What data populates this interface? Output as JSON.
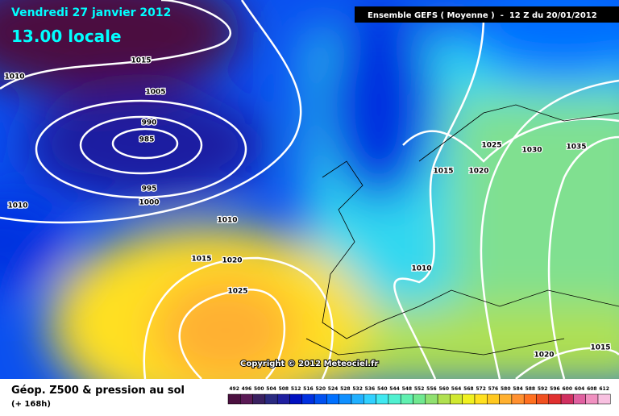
{
  "header": {
    "date": "Vendredi 27 janvier 2012",
    "time": "13.00 locale",
    "run": "Ensemble GEFS ( Moyenne )  -  12 Z du 20/01/2012"
  },
  "isobars": [
    "1015",
    "1010",
    "1005",
    "990",
    "985",
    "995",
    "1000",
    "1010",
    "1010",
    "1015",
    "1020",
    "1025",
    "1025",
    "1030",
    "1035",
    "1015",
    "1020",
    "1010",
    "1020",
    "1015"
  ],
  "copyright": "Copyright © 2012 Meteociel.fr",
  "footer": {
    "title": "Géop. Z500 & pression au sol",
    "lead": "(+ 168h)"
  },
  "legend": {
    "labels": [
      492,
      496,
      500,
      504,
      508,
      512,
      516,
      520,
      524,
      528,
      532,
      536,
      540,
      544,
      548,
      552,
      556,
      560,
      564,
      568,
      572,
      576,
      580,
      584,
      588,
      592,
      596,
      600,
      604,
      608,
      612
    ],
    "colors": [
      "#4b1040",
      "#5a1a55",
      "#3a2060",
      "#2a2a80",
      "#1f1fa0",
      "#0010c0",
      "#0030e0",
      "#0050f0",
      "#0070ff",
      "#1090ff",
      "#20b0ff",
      "#30d0ff",
      "#40e8f0",
      "#50f0d0",
      "#60f0b0",
      "#70e890",
      "#90e070",
      "#b0e050",
      "#d0e830",
      "#f0f020",
      "#ffe020",
      "#ffc820",
      "#ffb030",
      "#ff9030",
      "#ff7020",
      "#f05020",
      "#e03030",
      "#d03060",
      "#e060a0",
      "#f090c0",
      "#f8c0e0"
    ]
  }
}
